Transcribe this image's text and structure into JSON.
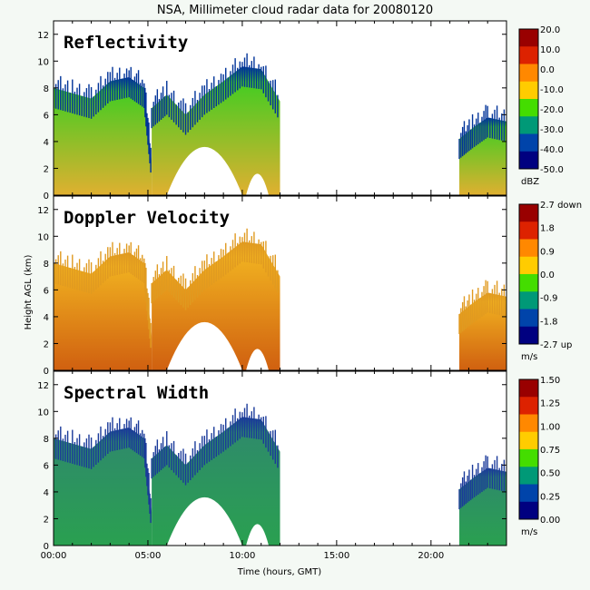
{
  "title": "NSA, Millimeter cloud radar data for 20080120",
  "y_axis_label": "Height AGL (km)",
  "x_axis_label": "Time (hours, GMT)",
  "x_ticks": [
    {
      "value": 0,
      "label": "00:00"
    },
    {
      "value": 5,
      "label": "05:00"
    },
    {
      "value": 10,
      "label": "10:00"
    },
    {
      "value": 15,
      "label": "15:00"
    },
    {
      "value": 20,
      "label": "20:00"
    }
  ],
  "y_ticks": [
    0,
    2,
    4,
    6,
    8,
    10,
    12
  ],
  "chart_data": {
    "type": "heatmap",
    "xlim": [
      0,
      24
    ],
    "ylim": [
      0,
      13
    ],
    "panels": [
      {
        "name": "reflectivity",
        "title": "Reflectivity",
        "unit": "dBZ",
        "colorbar_ticks": [
          "20.0",
          "10.0",
          "0.0",
          "-10.0",
          "-20.0",
          "-30.0",
          "-40.0",
          "-50.0"
        ],
        "colors": [
          "#990000",
          "#dd2200",
          "#ff8800",
          "#ffcc00",
          "#44dd00",
          "#009977",
          "#0044aa",
          "#000080"
        ],
        "top_color": "#44cc22",
        "bottom_color": "#e0b030",
        "edge_color": "#003399"
      },
      {
        "name": "doppler-velocity",
        "title": "Doppler Velocity",
        "unit": "m/s",
        "colorbar_ticks": [
          "2.7 down",
          "1.8",
          "0.9",
          "0.0",
          "-0.9",
          "-1.8",
          "-2.7 up"
        ],
        "colors": [
          "#990000",
          "#dd2200",
          "#ff8800",
          "#ffcc00",
          "#44dd00",
          "#009977",
          "#0044aa",
          "#000080"
        ],
        "top_color": "#f0b020",
        "bottom_color": "#d06010",
        "edge_color": "#e09a20"
      },
      {
        "name": "spectral-width",
        "title": "Spectral Width",
        "unit": "m/s",
        "colorbar_ticks": [
          "1.50",
          "1.25",
          "1.00",
          "0.75",
          "0.50",
          "0.25",
          "0.00"
        ],
        "colors": [
          "#990000",
          "#dd2200",
          "#ff8800",
          "#ffcc00",
          "#44dd00",
          "#009977",
          "#0044aa",
          "#000080"
        ],
        "top_color": "#2e8b6a",
        "bottom_color": "#2aa050",
        "edge_color": "#1a3a9a"
      }
    ],
    "cloud_regions": [
      {
        "name": "morning-cloud",
        "x": [
          0.0,
          1.0,
          2.0,
          3.0,
          4.0,
          4.8,
          5.2
        ],
        "top": [
          8.0,
          7.6,
          7.2,
          8.5,
          8.8,
          8.0,
          2.5
        ]
      },
      {
        "name": "midday-cloud",
        "x": [
          5.2,
          6.0,
          7.0,
          8.0,
          9.0,
          10.0,
          11.0,
          12.0
        ],
        "top": [
          6.5,
          7.5,
          6.0,
          7.5,
          8.5,
          9.6,
          9.4,
          7.0
        ]
      },
      {
        "name": "evening-cloud",
        "x": [
          21.5,
          22.2,
          23.0,
          24.0
        ],
        "top": [
          4.2,
          5.0,
          5.8,
          5.5
        ]
      }
    ],
    "gaps": [
      {
        "name": "gap-center",
        "x": [
          6.0,
          10.0
        ],
        "top": [
          4.5,
          4.0
        ]
      },
      {
        "name": "gap-right",
        "x": [
          10.2,
          11.4
        ],
        "top": [
          2.0,
          1.5
        ]
      }
    ]
  }
}
